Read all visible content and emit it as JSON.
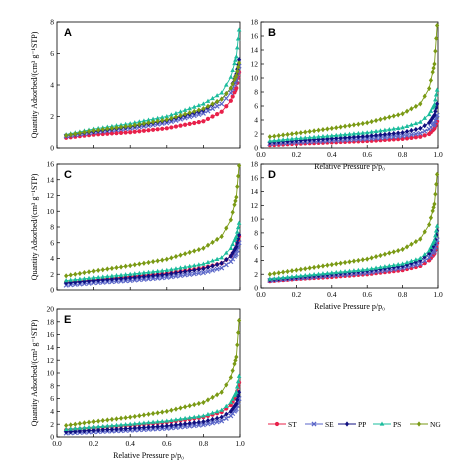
{
  "figure": {
    "ylabel": "Quantity Adsorbed/(cm³ g⁻¹STP)",
    "xlabel": "Relative Pressure p/p₀"
  },
  "legend": [
    {
      "name": "ST",
      "color": "#e8204a",
      "marker": "circle"
    },
    {
      "name": "SE",
      "color": "#5a66c8",
      "marker": "cross"
    },
    {
      "name": "PP",
      "color": "#101080",
      "marker": "diamond"
    },
    {
      "name": "PS",
      "color": "#1abc9c",
      "marker": "triangle"
    },
    {
      "name": "NG",
      "color": "#7a9a14",
      "marker": "diamond"
    }
  ],
  "chart_data": [
    {
      "panel": "A",
      "type": "line",
      "xlim": [
        0,
        1
      ],
      "ylim": [
        0,
        8
      ],
      "xticks": [],
      "yticks": [
        0,
        2,
        4,
        6,
        8
      ],
      "ylabel": "Quantity Adsorbed/(cm³ g⁻¹STP)",
      "xlabel": "",
      "series": [
        {
          "name": "ST",
          "x": [
            0.05,
            0.2,
            0.4,
            0.6,
            0.8,
            0.9,
            0.95,
            0.98,
            0.995
          ],
          "y": [
            0.65,
            0.85,
            1.0,
            1.25,
            1.7,
            2.3,
            3.0,
            3.8,
            4.8
          ]
        },
        {
          "name": "SE",
          "x": [
            0.05,
            0.2,
            0.4,
            0.6,
            0.8,
            0.9,
            0.95,
            0.98,
            0.995
          ],
          "y": [
            0.75,
            1.0,
            1.25,
            1.6,
            2.2,
            2.8,
            3.5,
            4.3,
            5.2
          ]
        },
        {
          "name": "PP",
          "x": [
            0.05,
            0.2,
            0.4,
            0.6,
            0.8,
            0.9,
            0.95,
            0.98,
            0.995
          ],
          "y": [
            0.8,
            1.05,
            1.35,
            1.75,
            2.4,
            3.1,
            3.8,
            4.7,
            5.6
          ]
        },
        {
          "name": "PS",
          "x": [
            0.05,
            0.2,
            0.4,
            0.6,
            0.8,
            0.9,
            0.95,
            0.98,
            0.995
          ],
          "y": [
            0.85,
            1.2,
            1.55,
            2.0,
            2.8,
            3.5,
            4.5,
            5.8,
            7.5
          ]
        },
        {
          "name": "NG",
          "x": [
            0.05,
            0.2,
            0.4,
            0.6,
            0.8,
            0.9,
            0.95,
            0.98,
            0.995
          ],
          "y": [
            0.8,
            1.1,
            1.4,
            1.8,
            2.5,
            3.1,
            3.8,
            4.6,
            5.4
          ]
        }
      ]
    },
    {
      "panel": "B",
      "type": "line",
      "xlim": [
        0,
        1
      ],
      "ylim": [
        0,
        18
      ],
      "xticks": [
        0,
        0.2,
        0.4,
        0.6,
        0.8,
        1.0
      ],
      "yticks": [
        0,
        2,
        4,
        6,
        8,
        10,
        12,
        14,
        16,
        18
      ],
      "ylabel": "",
      "xlabel": "Relative Pressure p/p₀",
      "series": [
        {
          "name": "ST",
          "x": [
            0.05,
            0.2,
            0.4,
            0.6,
            0.8,
            0.9,
            0.95,
            0.98,
            0.995
          ],
          "y": [
            0.4,
            0.6,
            0.8,
            1.0,
            1.3,
            1.6,
            2.0,
            2.8,
            3.8
          ]
        },
        {
          "name": "SE",
          "x": [
            0.05,
            0.2,
            0.4,
            0.6,
            0.8,
            0.9,
            0.95,
            0.98,
            0.995
          ],
          "y": [
            0.6,
            0.8,
            1.05,
            1.3,
            1.7,
            2.1,
            2.7,
            3.5,
            4.7
          ]
        },
        {
          "name": "PP",
          "x": [
            0.05,
            0.2,
            0.4,
            0.6,
            0.8,
            0.9,
            0.95,
            0.98,
            0.995
          ],
          "y": [
            0.8,
            1.05,
            1.35,
            1.7,
            2.2,
            2.8,
            3.6,
            4.7,
            6.3
          ]
        },
        {
          "name": "PS",
          "x": [
            0.05,
            0.2,
            0.4,
            0.6,
            0.8,
            0.9,
            0.95,
            0.98,
            0.995
          ],
          "y": [
            1.0,
            1.35,
            1.75,
            2.2,
            2.9,
            3.7,
            4.8,
            6.2,
            8.3
          ]
        },
        {
          "name": "NG",
          "x": [
            0.05,
            0.2,
            0.4,
            0.6,
            0.8,
            0.9,
            0.95,
            0.98,
            0.995
          ],
          "y": [
            1.6,
            2.1,
            2.8,
            3.6,
            4.9,
            6.3,
            8.5,
            12.0,
            17.5
          ]
        }
      ]
    },
    {
      "panel": "C",
      "type": "line",
      "xlim": [
        0,
        1
      ],
      "ylim": [
        0,
        16
      ],
      "xticks": [],
      "yticks": [
        0,
        2,
        4,
        6,
        8,
        10,
        12,
        14,
        16
      ],
      "ylabel": "Quantity Adsorbed/(cm³ g⁻¹STP)",
      "xlabel": "",
      "series": [
        {
          "name": "ST",
          "x": [
            0.05,
            0.2,
            0.4,
            0.6,
            0.8,
            0.9,
            0.95,
            0.98,
            0.995
          ],
          "y": [
            1.0,
            1.3,
            1.7,
            2.1,
            2.8,
            3.4,
            4.3,
            5.3,
            6.8
          ]
        },
        {
          "name": "SE",
          "x": [
            0.05,
            0.2,
            0.4,
            0.6,
            0.8,
            0.9,
            0.95,
            0.98,
            0.995
          ],
          "y": [
            0.6,
            0.9,
            1.2,
            1.6,
            2.2,
            2.8,
            3.6,
            4.6,
            6.0
          ]
        },
        {
          "name": "PP",
          "x": [
            0.05,
            0.2,
            0.4,
            0.6,
            0.8,
            0.9,
            0.95,
            0.98,
            0.995
          ],
          "y": [
            0.9,
            1.2,
            1.55,
            2.0,
            2.7,
            3.4,
            4.3,
            5.5,
            7.0
          ]
        },
        {
          "name": "PS",
          "x": [
            0.05,
            0.2,
            0.4,
            0.6,
            0.8,
            0.9,
            0.95,
            0.98,
            0.995
          ],
          "y": [
            1.2,
            1.55,
            2.0,
            2.5,
            3.3,
            4.1,
            5.3,
            6.8,
            8.5
          ]
        },
        {
          "name": "NG",
          "x": [
            0.05,
            0.2,
            0.4,
            0.6,
            0.8,
            0.9,
            0.95,
            0.98,
            0.995
          ],
          "y": [
            1.8,
            2.4,
            3.1,
            3.9,
            5.3,
            6.8,
            8.9,
            11.8,
            15.8
          ]
        }
      ]
    },
    {
      "panel": "D",
      "type": "line",
      "xlim": [
        0,
        1
      ],
      "ylim": [
        0,
        18
      ],
      "xticks": [
        0,
        0.2,
        0.4,
        0.6,
        0.8,
        1.0
      ],
      "yticks": [
        0,
        2,
        4,
        6,
        8,
        10,
        12,
        14,
        16,
        18
      ],
      "ylabel": "",
      "xlabel": "Relative Pressure p/p₀",
      "series": [
        {
          "name": "ST",
          "x": [
            0.05,
            0.2,
            0.4,
            0.6,
            0.8,
            0.9,
            0.95,
            0.98,
            0.995
          ],
          "y": [
            1.0,
            1.3,
            1.6,
            2.0,
            2.6,
            3.2,
            4.0,
            5.0,
            6.5
          ]
        },
        {
          "name": "SE",
          "x": [
            0.05,
            0.2,
            0.4,
            0.6,
            0.8,
            0.9,
            0.95,
            0.98,
            0.995
          ],
          "y": [
            1.1,
            1.4,
            1.8,
            2.2,
            2.9,
            3.5,
            4.4,
            5.5,
            7.0
          ]
        },
        {
          "name": "PP",
          "x": [
            0.05,
            0.2,
            0.4,
            0.6,
            0.8,
            0.9,
            0.95,
            0.98,
            0.995
          ],
          "y": [
            1.2,
            1.55,
            2.0,
            2.5,
            3.2,
            4.0,
            5.0,
            6.4,
            8.3
          ]
        },
        {
          "name": "PS",
          "x": [
            0.05,
            0.2,
            0.4,
            0.6,
            0.8,
            0.9,
            0.95,
            0.98,
            0.995
          ],
          "y": [
            1.3,
            1.7,
            2.2,
            2.7,
            3.5,
            4.3,
            5.4,
            6.9,
            9.0
          ]
        },
        {
          "name": "NG",
          "x": [
            0.05,
            0.2,
            0.4,
            0.6,
            0.8,
            0.9,
            0.95,
            0.98,
            0.995
          ],
          "y": [
            2.0,
            2.6,
            3.4,
            4.2,
            5.6,
            7.1,
            9.2,
            12.2,
            16.5
          ]
        }
      ]
    },
    {
      "panel": "E",
      "type": "line",
      "xlim": [
        0,
        1
      ],
      "ylim": [
        0,
        20
      ],
      "xticks": [
        0,
        0.2,
        0.4,
        0.6,
        0.8,
        1.0
      ],
      "yticks": [
        0,
        2,
        4,
        6,
        8,
        10,
        12,
        14,
        16,
        18,
        20
      ],
      "ylabel": "Quantity Adsorbed/(cm³ g⁻¹STP)",
      "xlabel": "Relative Pressure p/p₀",
      "series": [
        {
          "name": "ST",
          "x": [
            0.05,
            0.2,
            0.4,
            0.6,
            0.8,
            0.9,
            0.95,
            0.98,
            0.995
          ],
          "y": [
            1.1,
            1.4,
            1.8,
            2.3,
            3.1,
            3.9,
            5.0,
            6.5,
            8.5
          ]
        },
        {
          "name": "SE",
          "x": [
            0.05,
            0.2,
            0.4,
            0.6,
            0.8,
            0.9,
            0.95,
            0.98,
            0.995
          ],
          "y": [
            0.6,
            0.8,
            1.05,
            1.35,
            1.9,
            2.5,
            3.3,
            4.4,
            6.0
          ]
        },
        {
          "name": "PP",
          "x": [
            0.05,
            0.2,
            0.4,
            0.6,
            0.8,
            0.9,
            0.95,
            0.98,
            0.995
          ],
          "y": [
            0.8,
            1.05,
            1.35,
            1.75,
            2.4,
            3.1,
            4.0,
            5.2,
            7.0
          ]
        },
        {
          "name": "PS",
          "x": [
            0.05,
            0.2,
            0.4,
            0.6,
            0.8,
            0.9,
            0.95,
            0.98,
            0.995
          ],
          "y": [
            1.2,
            1.55,
            2.0,
            2.5,
            3.3,
            4.2,
            5.4,
            7.0,
            9.5
          ]
        },
        {
          "name": "NG",
          "x": [
            0.05,
            0.2,
            0.4,
            0.6,
            0.8,
            0.9,
            0.95,
            0.98,
            0.995
          ],
          "y": [
            1.8,
            2.4,
            3.1,
            4.0,
            5.4,
            7.0,
            9.3,
            12.5,
            18.2
          ]
        }
      ]
    }
  ]
}
